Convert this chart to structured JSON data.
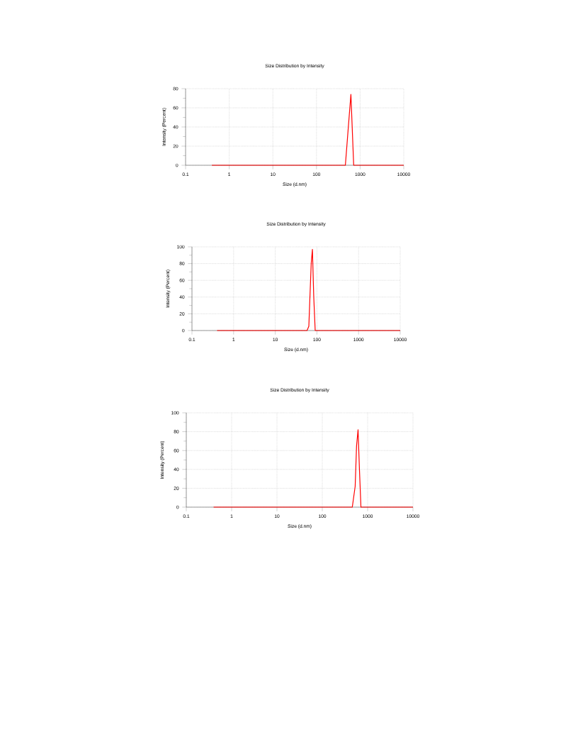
{
  "chart_data": [
    {
      "type": "line",
      "title": "Size Distribution by Intensity",
      "xlabel": "Size (d.nm)",
      "ylabel": "Intensity (Percent)",
      "log": "x",
      "grid": true,
      "xlim": [
        0.1,
        10000
      ],
      "ylim": [
        0,
        80
      ],
      "xticks": [
        0.1,
        1,
        10,
        100,
        1000,
        10000
      ],
      "yticks": [
        0,
        20,
        40,
        60,
        80
      ],
      "x": [
        0.4,
        459,
        531,
        615,
        712,
        10000
      ],
      "series": [
        {
          "color": "#ff0000",
          "values": [
            0,
            0,
            37,
            74,
            0,
            0
          ]
        }
      ]
    },
    {
      "type": "line",
      "title": "Size Distribution by Intensity",
      "xlabel": "Size (d.nm)",
      "ylabel": "Intensity (Percent)",
      "log": "x",
      "grid": true,
      "xlim": [
        0.1,
        10000
      ],
      "ylim": [
        0,
        100
      ],
      "xticks": [
        0.1,
        1,
        10,
        100,
        1000,
        10000
      ],
      "yticks": [
        0,
        20,
        40,
        60,
        80,
        100
      ],
      "x": [
        0.4,
        58,
        64,
        68,
        73,
        78,
        84,
        91,
        10000
      ],
      "series": [
        {
          "color": "#ff0000",
          "values": [
            0,
            0,
            5,
            40,
            80,
            97,
            40,
            0,
            0
          ]
        }
      ]
    },
    {
      "type": "line",
      "title": "Size Distribution by Intensity",
      "xlabel": "Size (d.nm)",
      "ylabel": "Intensity (Percent)",
      "log": "x",
      "grid": true,
      "xlim": [
        0.1,
        10000
      ],
      "ylim": [
        0,
        100
      ],
      "xticks": [
        0.1,
        1,
        10,
        100,
        1000,
        10000
      ],
      "yticks": [
        0,
        20,
        40,
        60,
        80,
        100
      ],
      "x": [
        0.4,
        459,
        531,
        570,
        615,
        660,
        712,
        10000
      ],
      "series": [
        {
          "color": "#ff0000",
          "values": [
            0,
            0,
            22,
            65,
            82,
            40,
            0,
            0
          ]
        }
      ]
    }
  ]
}
